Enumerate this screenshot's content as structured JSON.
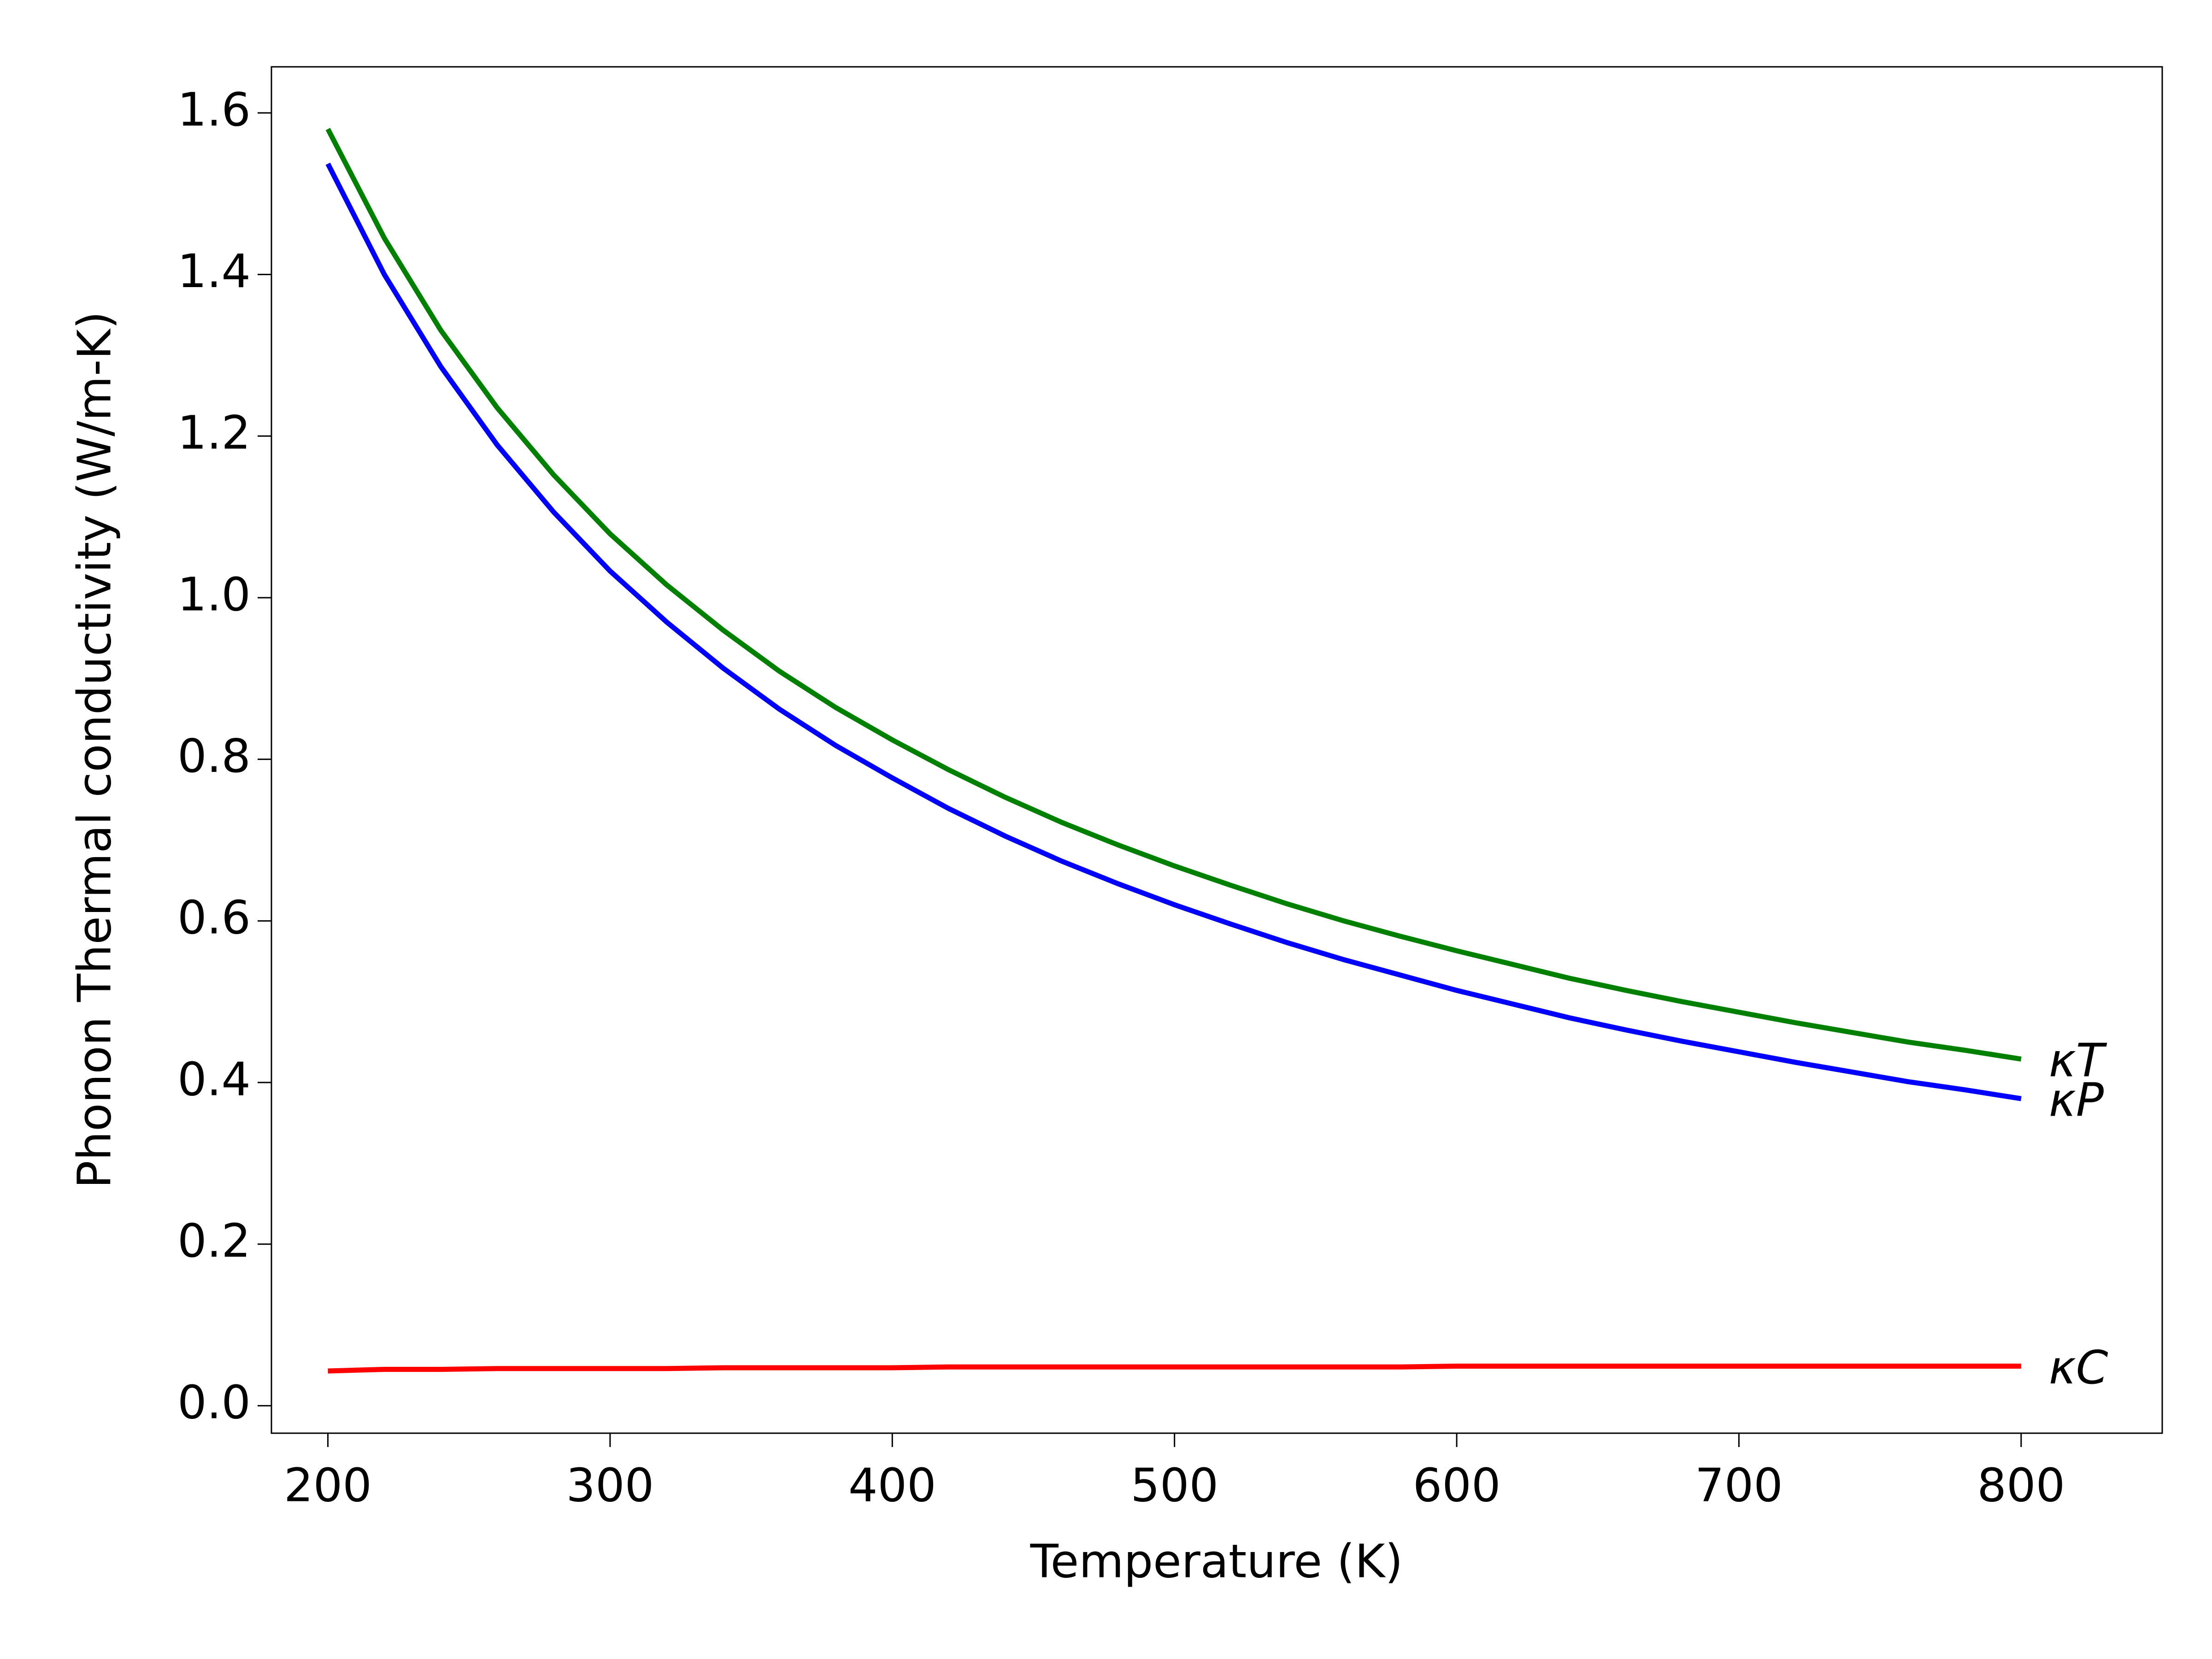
{
  "chart_data": {
    "type": "line",
    "xlabel": "Temperature (K)",
    "ylabel": "Phonon Thermal conductivity (W/m-K)",
    "x": [
      200,
      220,
      240,
      260,
      280,
      300,
      320,
      340,
      360,
      380,
      400,
      420,
      440,
      460,
      480,
      500,
      520,
      540,
      560,
      580,
      600,
      620,
      640,
      660,
      680,
      700,
      720,
      740,
      760,
      780,
      800
    ],
    "series": [
      {
        "name": "κT",
        "color": "#008000",
        "values": [
          1.58,
          1.445,
          1.331,
          1.235,
          1.152,
          1.079,
          1.016,
          0.96,
          0.909,
          0.864,
          0.824,
          0.787,
          0.753,
          0.722,
          0.694,
          0.668,
          0.644,
          0.621,
          0.6,
          0.581,
          0.563,
          0.546,
          0.529,
          0.514,
          0.5,
          0.487,
          0.474,
          0.462,
          0.45,
          0.44,
          0.429
        ]
      },
      {
        "name": "κP",
        "color": "#0000ff",
        "values": [
          1.537,
          1.4,
          1.286,
          1.189,
          1.106,
          1.033,
          0.97,
          0.913,
          0.862,
          0.817,
          0.777,
          0.739,
          0.705,
          0.674,
          0.646,
          0.62,
          0.596,
          0.573,
          0.552,
          0.533,
          0.514,
          0.497,
          0.48,
          0.465,
          0.451,
          0.438,
          0.425,
          0.413,
          0.401,
          0.391,
          0.38
        ]
      },
      {
        "name": "κC",
        "color": "#ff0000",
        "values": [
          0.043,
          0.045,
          0.045,
          0.046,
          0.046,
          0.046,
          0.046,
          0.047,
          0.047,
          0.047,
          0.047,
          0.048,
          0.048,
          0.048,
          0.048,
          0.048,
          0.048,
          0.048,
          0.048,
          0.048,
          0.049,
          0.049,
          0.049,
          0.049,
          0.049,
          0.049,
          0.049,
          0.049,
          0.049,
          0.049,
          0.049
        ]
      }
    ],
    "xlim": [
      180,
      850
    ],
    "ylim": [
      -0.034,
      1.657
    ],
    "xticks": [
      200,
      300,
      400,
      500,
      600,
      700,
      800
    ],
    "yticks": [
      {
        "value": 0,
        "label": "0.0"
      },
      {
        "value": 0.2,
        "label": "0.2"
      },
      {
        "value": 0.4,
        "label": "0.4"
      },
      {
        "value": 0.6,
        "label": "0.6"
      },
      {
        "value": 0.8,
        "label": "0.8"
      },
      {
        "value": 1.0,
        "label": "1.0"
      },
      {
        "value": 1.2,
        "label": "1.2"
      },
      {
        "value": 1.4,
        "label": "1.4"
      },
      {
        "value": 1.6,
        "label": "1.6"
      }
    ],
    "grid": false
  }
}
